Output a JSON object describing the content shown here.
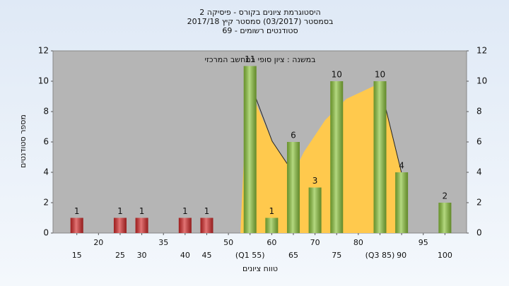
{
  "chart_data": {
    "type": "bar",
    "title": [
      "היסטוגרמת ציונים בקורס - פיסיקה 2",
      "בסמסטר  (03/2017)  סמסטר קיץ  2017/18",
      "סטודנטים רשומים - 69"
    ],
    "annotation": "במשנה : ציון סופי במחשב המרכזי",
    "x_label": "טווח ציונים",
    "y_label": "מספר סטודנטים",
    "series": [
      {
        "color": "#d42a2a",
        "x": [
          15,
          25,
          30,
          40,
          45
        ],
        "values": [
          1,
          1,
          1,
          1,
          1
        ]
      },
      {
        "color": "#8cc43c",
        "x": [
          55,
          60,
          65,
          70,
          75,
          85,
          90,
          100
        ],
        "values": [
          11,
          1,
          6,
          3,
          10,
          10,
          4,
          2
        ]
      }
    ],
    "xlim": [
      9.5,
      105
    ],
    "xticks": [
      15,
      20,
      25,
      30,
      35,
      40,
      45,
      50,
      {
        "value": 55,
        "label": "(Q1 55)"
      },
      60,
      65,
      70,
      75,
      80,
      {
        "value": 85,
        "label": "(Q3 85)"
      },
      90,
      95,
      100
    ],
    "ylim": [
      0,
      12
    ],
    "yticks": [
      0,
      2,
      4,
      6,
      8,
      10,
      12
    ],
    "y2lim": [
      0,
      12
    ],
    "y2ticks": [
      0,
      2,
      4,
      6,
      8,
      10,
      12
    ]
  }
}
